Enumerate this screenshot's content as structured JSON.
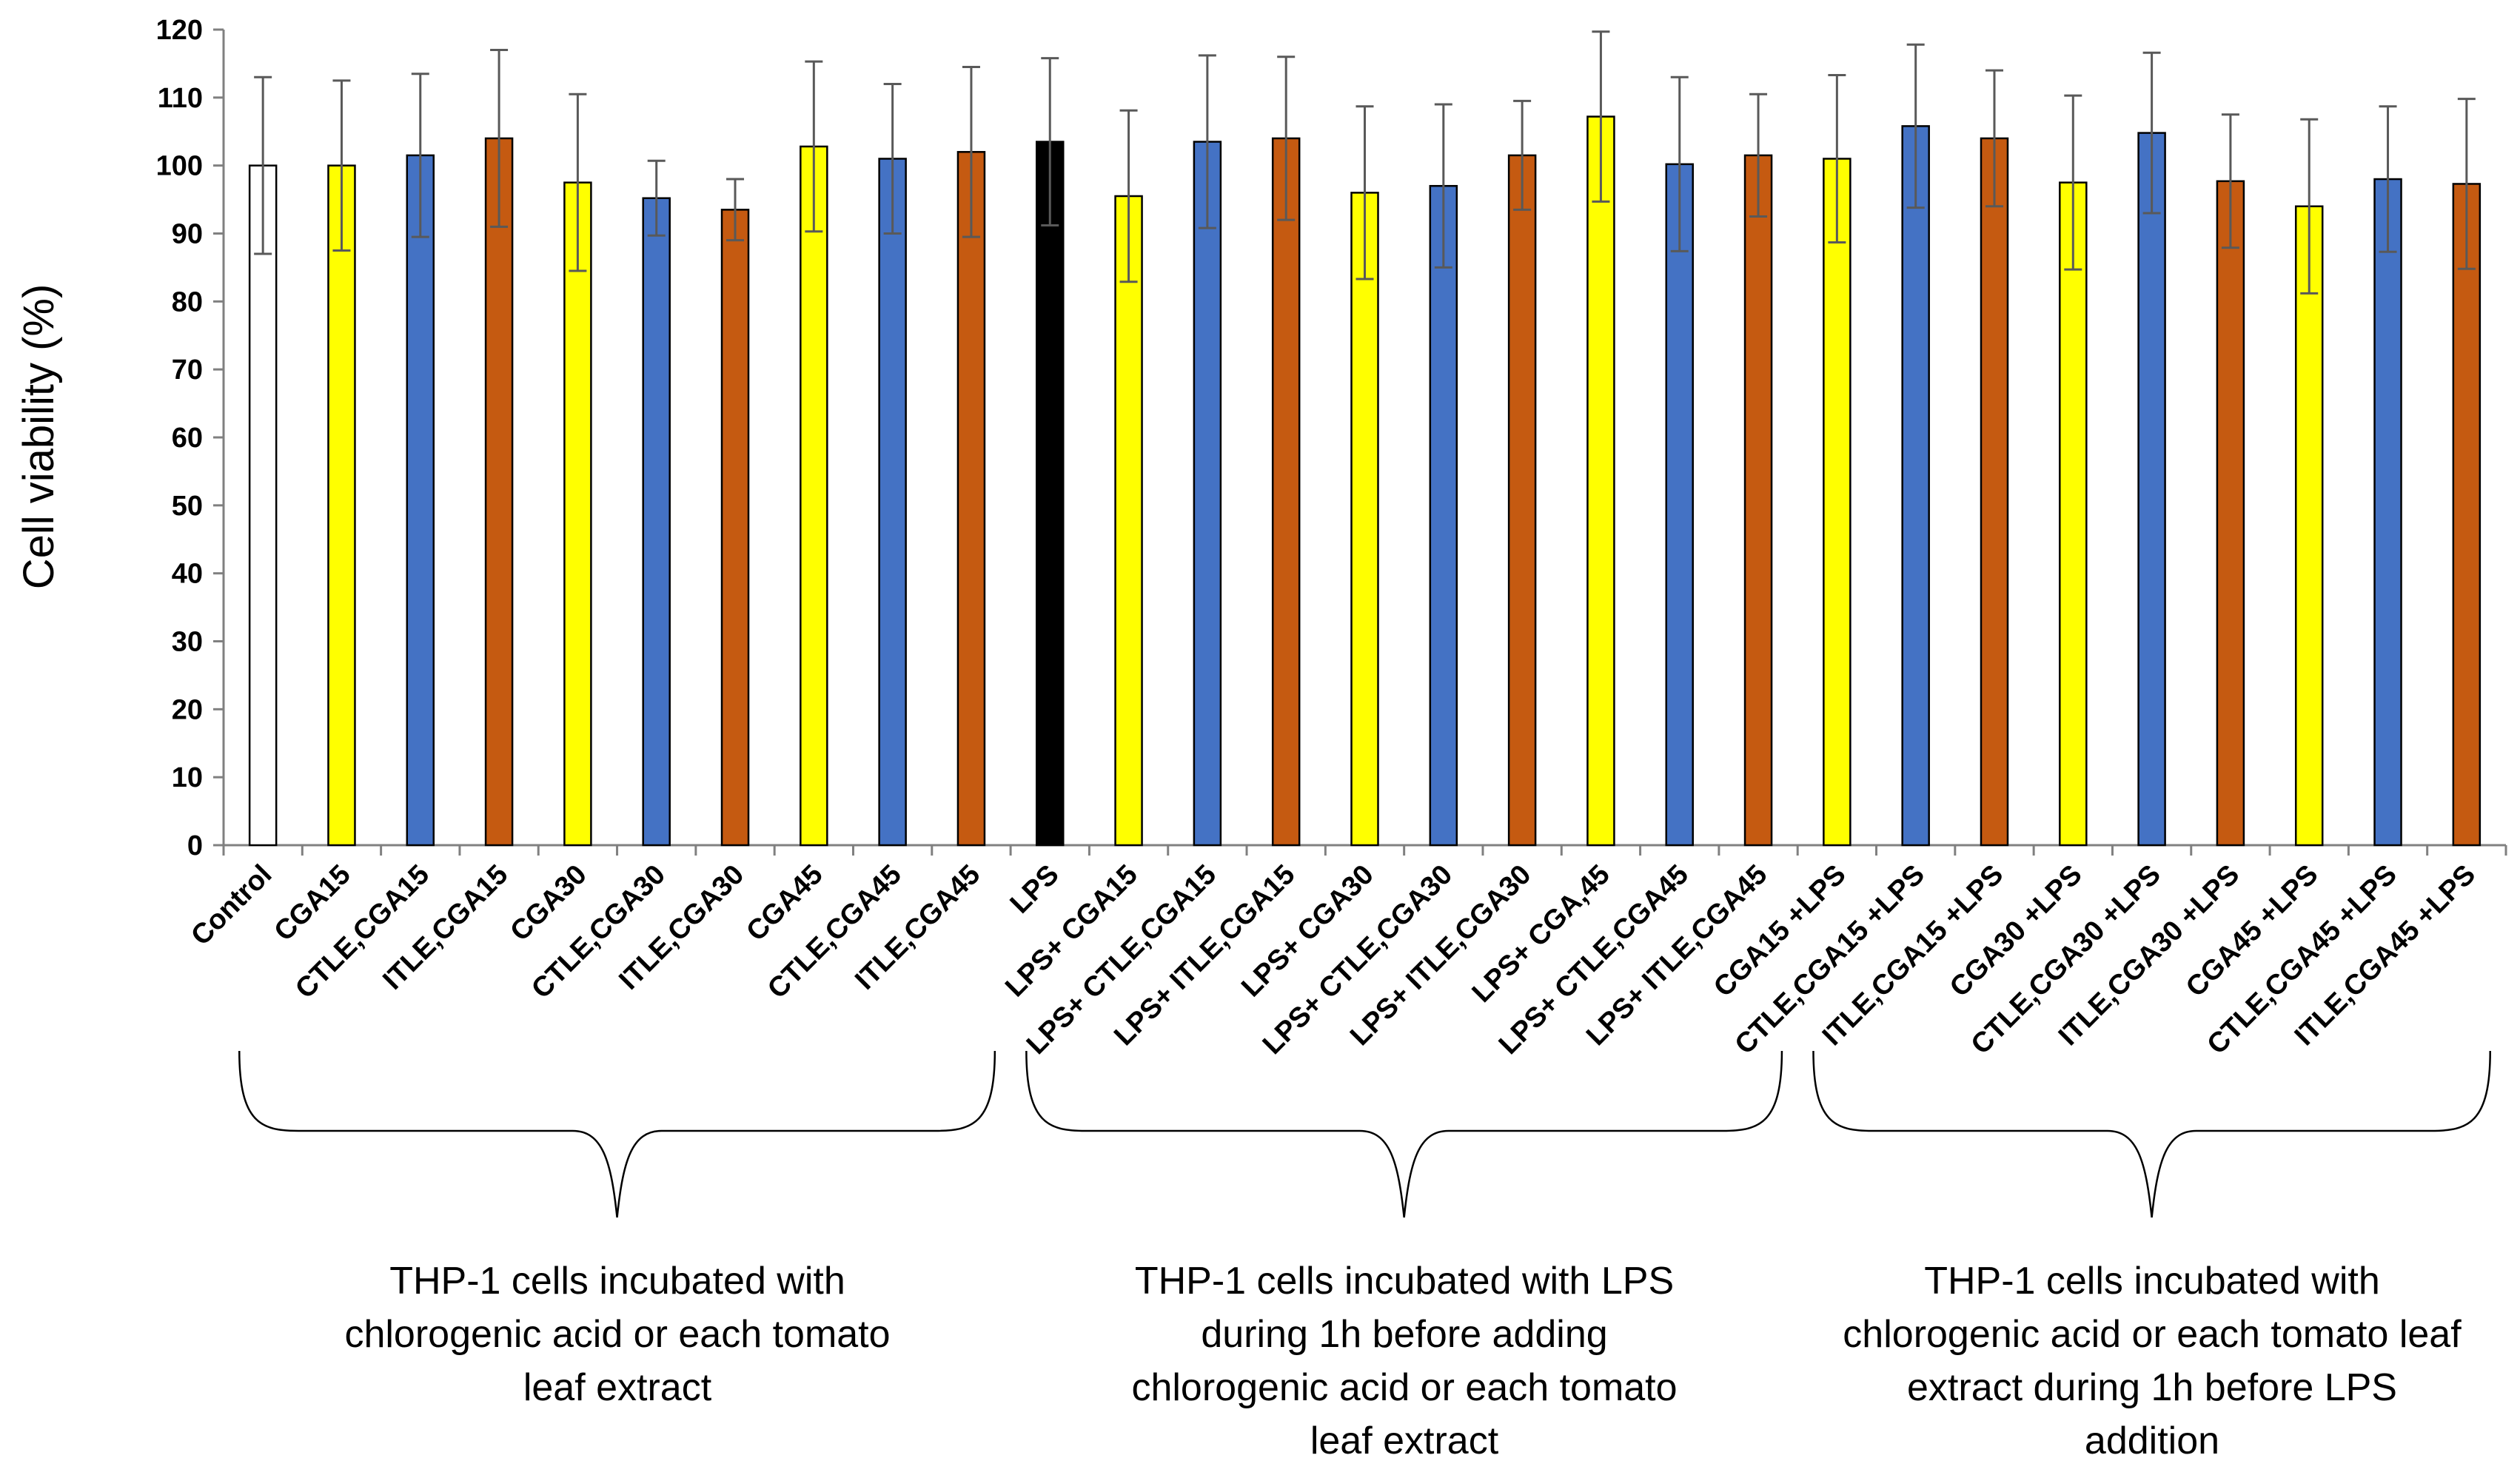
{
  "chart_data": {
    "type": "bar",
    "title": "",
    "xlabel": "",
    "ylabel": "Cell viability (%)",
    "ylim": [
      0,
      120
    ],
    "yticks": [
      0,
      10,
      20,
      30,
      40,
      50,
      60,
      70,
      80,
      90,
      100,
      110,
      120
    ],
    "grid": false,
    "bars": [
      {
        "category": "Control",
        "value": 100,
        "error": 13,
        "color": "#ffffff"
      },
      {
        "category": "CGA15",
        "value": 100,
        "error": 12.5,
        "color": "#ffff00"
      },
      {
        "category": "CTLE,CGA15",
        "value": 101.5,
        "error": 12,
        "color": "#4472c4"
      },
      {
        "category": "ITLE,CGA15",
        "value": 104,
        "error": 13,
        "color": "#c55a11"
      },
      {
        "category": "CGA30",
        "value": 97.5,
        "error": 13,
        "color": "#ffff00"
      },
      {
        "category": "CTLE,CGA30",
        "value": 95.2,
        "error": 5.5,
        "color": "#4472c4"
      },
      {
        "category": "ITLE,CGA30",
        "value": 93.5,
        "error": 4.5,
        "color": "#c55a11"
      },
      {
        "category": "CGA45",
        "value": 102.8,
        "error": 12.5,
        "color": "#ffff00"
      },
      {
        "category": "CTLE,CGA45",
        "value": 101,
        "error": 11,
        "color": "#4472c4"
      },
      {
        "category": "ITLE,CGA45",
        "value": 102,
        "error": 12.5,
        "color": "#c55a11"
      },
      {
        "category": "LPS",
        "value": 103.5,
        "error": 12.3,
        "color": "#000000"
      },
      {
        "category": "LPS+ CGA15",
        "value": 95.5,
        "error": 12.6,
        "color": "#ffff00"
      },
      {
        "category": "LPS+ CTLE,CGA15",
        "value": 103.5,
        "error": 12.7,
        "color": "#4472c4"
      },
      {
        "category": "LPS+ ITLE,CGA15",
        "value": 104,
        "error": 12,
        "color": "#c55a11"
      },
      {
        "category": "LPS+ CGA30",
        "value": 96,
        "error": 12.7,
        "color": "#ffff00"
      },
      {
        "category": "LPS+ CTLE,CGA30",
        "value": 97,
        "error": 12,
        "color": "#4472c4"
      },
      {
        "category": "LPS+ ITLE,CGA30",
        "value": 101.5,
        "error": 8,
        "color": "#c55a11"
      },
      {
        "category": "LPS+ CGA,45",
        "value": 107.2,
        "error": 12.5,
        "color": "#ffff00"
      },
      {
        "category": "LPS+ CTLE,CGA45",
        "value": 100.2,
        "error": 12.8,
        "color": "#4472c4"
      },
      {
        "category": "LPS+ ITLE,CGA45",
        "value": 101.5,
        "error": 9,
        "color": "#c55a11"
      },
      {
        "category": "CGA15 +LPS",
        "value": 101,
        "error": 12.3,
        "color": "#ffff00"
      },
      {
        "category": "CTLE,CGA15 +LPS",
        "value": 105.8,
        "error": 12,
        "color": "#4472c4"
      },
      {
        "category": "ITLE,CGA15 +LPS",
        "value": 104,
        "error": 10,
        "color": "#c55a11"
      },
      {
        "category": "CGA30 +LPS",
        "value": 97.5,
        "error": 12.8,
        "color": "#ffff00"
      },
      {
        "category": "CTLE,CGA30 +LPS",
        "value": 104.8,
        "error": 11.8,
        "color": "#4472c4"
      },
      {
        "category": "ITLE,CGA30 +LPS",
        "value": 97.7,
        "error": 9.8,
        "color": "#c55a11"
      },
      {
        "category": "CGA45 +LPS",
        "value": 94,
        "error": 12.8,
        "color": "#ffff00"
      },
      {
        "category": "CTLE,CGA45 +LPS",
        "value": 98,
        "error": 10.7,
        "color": "#4472c4"
      },
      {
        "category": "ITLE,CGA45 +LPS",
        "value": 97.3,
        "error": 12.5,
        "color": "#c55a11"
      }
    ],
    "groups": [
      {
        "from": 0,
        "to": 9,
        "lines": [
          "THP-1 cells incubated with",
          "chlorogenic acid or each tomato",
          "leaf extract"
        ]
      },
      {
        "from": 10,
        "to": 19,
        "lines": [
          "THP-1 cells incubated with LPS",
          "during 1h before adding",
          "chlorogenic acid or each tomato",
          "leaf extract"
        ]
      },
      {
        "from": 20,
        "to": 28,
        "lines": [
          "THP-1 cells incubated with",
          "chlorogenic acid or each tomato leaf",
          "extract during 1h before LPS",
          "addition"
        ]
      }
    ]
  }
}
